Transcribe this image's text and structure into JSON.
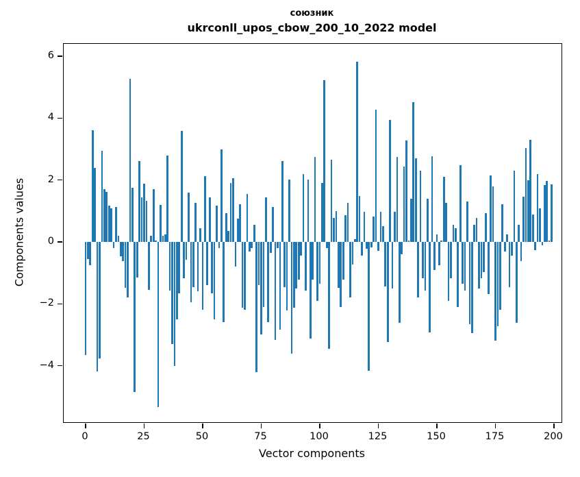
{
  "chart_data": {
    "type": "bar",
    "title_lines": [
      "союзник",
      "ukrconll_upos_cbow_200_10_2022 model"
    ],
    "xlabel": "Vector components",
    "ylabel": "Components values",
    "x_tick_labels": [
      0,
      25,
      50,
      75,
      100,
      125,
      150,
      175,
      200
    ],
    "y_tick_labels": [
      6,
      4,
      2,
      0,
      -2,
      -4
    ],
    "ylim": [
      -5.8,
      6.45
    ],
    "xlim": [
      -9.4,
      203
    ],
    "grid": false,
    "legend": null,
    "bar_color": "#1f77b4",
    "n_components": 200,
    "x_start": 0,
    "values": [
      -3.66,
      -0.55,
      -0.75,
      3.6,
      2.4,
      -4.19,
      -3.76,
      2.94,
      1.7,
      1.62,
      1.17,
      1.09,
      -0.21,
      1.14,
      0.21,
      -0.47,
      -0.63,
      -1.49,
      -1.8,
      5.27,
      1.74,
      -4.86,
      -1.15,
      2.61,
      1.43,
      1.89,
      1.34,
      -1.54,
      0.2,
      1.7,
      0.05,
      -5.33,
      1.2,
      0.2,
      0.25,
      2.8,
      -1.58,
      -3.3,
      -4.0,
      -2.5,
      -1.65,
      3.59,
      -1.17,
      -0.58,
      1.59,
      -1.96,
      -1.47,
      1.26,
      -1.6,
      0.45,
      -2.2,
      2.13,
      -1.39,
      1.45,
      -1.65,
      -2.5,
      1.17,
      -0.21,
      3.0,
      -2.6,
      0.92,
      0.35,
      1.9,
      2.07,
      -0.8,
      0.75,
      1.21,
      -2.13,
      -2.2,
      1.54,
      -0.32,
      -0.21,
      0.56,
      -4.2,
      -1.39,
      -3.0,
      -2.1,
      1.43,
      -2.6,
      -0.36,
      1.14,
      -3.17,
      -0.21,
      -2.84,
      2.61,
      -1.47,
      -2.21,
      2.02,
      -3.6,
      -2.13,
      -1.51,
      -1.21,
      -0.44,
      2.2,
      -1.58,
      2.02,
      -3.13,
      -1.21,
      2.74,
      -1.91,
      -1.36,
      1.9,
      5.23,
      -0.21,
      -3.46,
      2.65,
      0.77,
      1.0,
      -1.48,
      -2.1,
      -1.21,
      0.86,
      1.26,
      -1.8,
      -0.73,
      0.08,
      5.82,
      1.48,
      -0.44,
      0.97,
      -0.22,
      -4.16,
      -0.18,
      0.82,
      4.27,
      -0.29,
      0.97,
      0.52,
      -1.45,
      -3.24,
      3.94,
      -1.51,
      0.97,
      2.74,
      -2.61,
      -0.4,
      2.44,
      3.27,
      0.05,
      1.39,
      4.51,
      2.7,
      -1.8,
      2.3,
      -1.17,
      -1.58,
      1.39,
      -2.93,
      2.76,
      -0.9,
      0.25,
      -0.75,
      0.05,
      2.1,
      1.26,
      -1.9,
      -1.17,
      0.56,
      0.45,
      -2.1,
      2.48,
      -1.36,
      -1.58,
      1.31,
      -2.65,
      -2.95,
      0.56,
      0.77,
      -1.51,
      -1.17,
      -0.97,
      0.93,
      -1.69,
      2.15,
      1.8,
      -3.2,
      -2.72,
      -2.19,
      1.21,
      -0.32,
      0.25,
      -1.47,
      -0.44,
      2.3,
      -2.61,
      0.55,
      -0.62,
      1.46,
      3.03,
      2.0,
      3.31,
      0.89,
      -0.27,
      2.2,
      1.08,
      -0.1,
      1.83,
      1.98,
      0.05,
      1.85
    ]
  }
}
